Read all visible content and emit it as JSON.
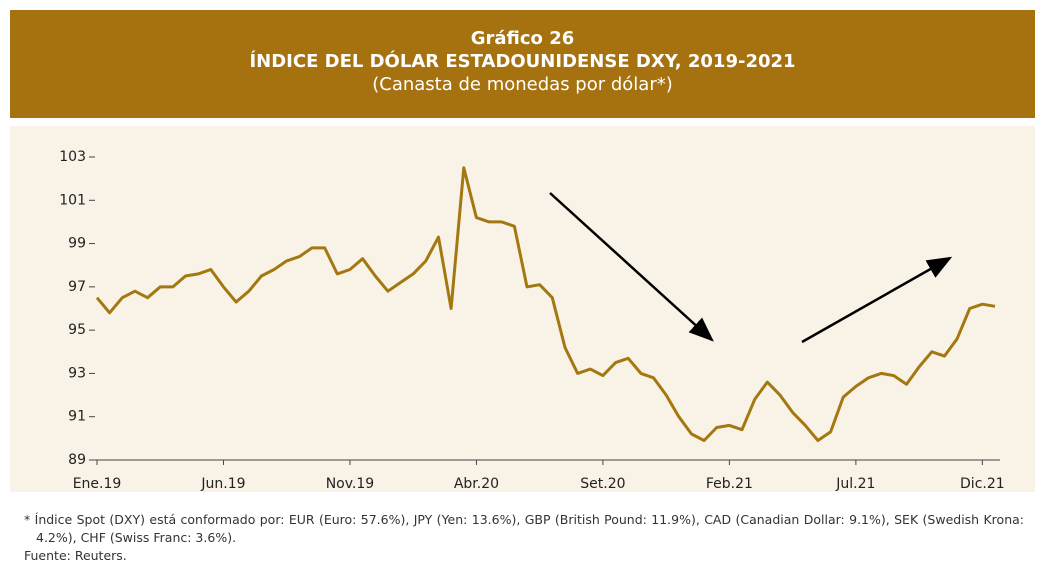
{
  "chart_data": {
    "type": "line",
    "title": "Gráfico 26",
    "subtitle": "ÍNDICE DEL DÓLAR ESTADOUNIDENSE DXY, 2019-2021",
    "unit_label": "(Canasta de monedas por dólar*)",
    "footnote": "* Índice Spot (DXY) está conformado por: EUR (Euro: 57.6%), JPY (Yen: 13.6%), GBP (British Pound: 11.9%), CAD (Canadian Dollar: 9.1%), SEK (Swedish Krona: 4.2%),  CHF (Swiss Franc: 3.6%).",
    "source": "Fuente: Reuters.",
    "categories": [
      "Ene.19",
      null,
      null,
      null,
      null,
      null,
      null,
      null,
      null,
      null,
      "Jun.19",
      null,
      null,
      null,
      null,
      null,
      null,
      null,
      null,
      null,
      "Nov.19",
      null,
      null,
      null,
      null,
      null,
      null,
      null,
      null,
      null,
      "Abr.20",
      null,
      null,
      null,
      null,
      null,
      null,
      null,
      null,
      null,
      "Set.20",
      null,
      null,
      null,
      null,
      null,
      null,
      null,
      null,
      null,
      "Feb.21",
      null,
      null,
      null,
      null,
      null,
      null,
      null,
      null,
      null,
      "Jul.21",
      null,
      null,
      null,
      null,
      null,
      null,
      null,
      null,
      null,
      "Dic.21",
      null
    ],
    "values": [
      96.5,
      95.8,
      96.5,
      96.8,
      96.5,
      97.0,
      97.0,
      97.5,
      97.6,
      97.8,
      97.0,
      96.3,
      96.8,
      97.5,
      97.8,
      98.2,
      98.4,
      98.8,
      98.8,
      97.6,
      97.8,
      98.3,
      97.5,
      96.8,
      97.2,
      97.6,
      98.2,
      99.3,
      96.0,
      102.5,
      100.2,
      100.0,
      100.0,
      99.8,
      97.0,
      97.1,
      96.5,
      94.2,
      93.0,
      93.2,
      92.9,
      93.5,
      93.7,
      93.0,
      92.8,
      92.0,
      91.0,
      90.2,
      89.9,
      90.5,
      90.6,
      90.4,
      91.8,
      92.6,
      92.0,
      91.2,
      90.6,
      89.9,
      90.3,
      91.9,
      92.4,
      92.8,
      93.0,
      92.9,
      92.5,
      93.3,
      94.0,
      93.8,
      94.6,
      96.0,
      96.2,
      96.1
    ],
    "color": "#a47810",
    "ylim": [
      89,
      103
    ],
    "yticks": [
      89,
      91,
      93,
      95,
      97,
      99,
      101,
      103
    ],
    "grid": false
  }
}
